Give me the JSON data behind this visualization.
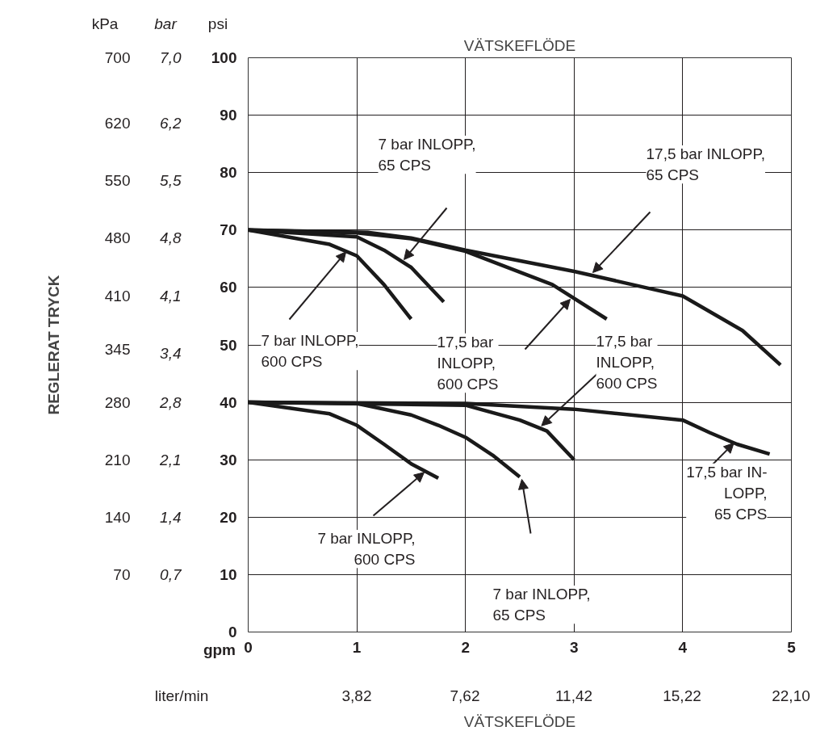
{
  "chart_data": {
    "type": "line",
    "title": "VÄTSKEFLÖDE",
    "y3label": "REGLERAT TRYCK",
    "xlabel": "VÄTSKEFLÖDE",
    "xlim": [
      0,
      5
    ],
    "xticks": [
      0,
      1,
      2,
      3,
      4,
      5
    ],
    "ylim": [
      0,
      100
    ],
    "yticks": [
      0,
      10,
      20,
      30,
      40,
      50,
      60,
      70,
      80,
      90,
      100
    ],
    "y2lim": [
      0,
      7
    ],
    "y2ticks": [
      {
        "value": 0.7,
        "label": "0,7"
      },
      {
        "value": 1.4,
        "label": "1,4"
      },
      {
        "value": 2.1,
        "label": "2,1"
      },
      {
        "value": 2.8,
        "label": "2,8"
      },
      {
        "value": 3.4,
        "label": "3,4"
      },
      {
        "value": 4.1,
        "label": "4,1"
      },
      {
        "value": 4.8,
        "label": "4,8"
      },
      {
        "value": 5.5,
        "label": "5,5"
      },
      {
        "value": 6.2,
        "label": "6,2"
      },
      {
        "value": 7,
        "label": "7,0"
      }
    ],
    "y3lim": [
      0,
      700
    ],
    "y3ticks": [
      70,
      140,
      210,
      280,
      345,
      410,
      480,
      550,
      620,
      700
    ],
    "grid": true,
    "marker": "none",
    "line_style": "solid",
    "series": [
      {
        "color": "#1a1a1a",
        "x": [
          0,
          0.75,
          1,
          1.25,
          1.5
        ],
        "values": [
          70,
          67.5,
          65.5,
          60.5,
          54.5
        ]
      },
      {
        "color": "#1a1a1a",
        "x": [
          0,
          1,
          1.25,
          1.5,
          1.8
        ],
        "values": [
          70,
          68.8,
          66.5,
          63.5,
          57.5
        ]
      },
      {
        "color": "#1a1a1a",
        "x": [
          0,
          1,
          1.5,
          2,
          2.8,
          3.3
        ],
        "values": [
          70,
          69.5,
          68.5,
          66.3,
          60.5,
          54.5
        ]
      },
      {
        "color": "#1a1a1a",
        "x": [
          0,
          1.1,
          1.5,
          2,
          3,
          3.7,
          4,
          4.55,
          4.9
        ],
        "values": [
          70,
          69.6,
          68.6,
          66.5,
          62.8,
          59.8,
          58.5,
          52.5,
          46.5
        ]
      },
      {
        "color": "#1a1a1a",
        "x": [
          0,
          0.75,
          1,
          1.25,
          1.5,
          1.75
        ],
        "values": [
          40,
          38,
          36,
          32.7,
          29.3,
          26.8
        ]
      },
      {
        "color": "#1a1a1a",
        "x": [
          0,
          1,
          1.5,
          1.75,
          2,
          2.25,
          2.5
        ],
        "values": [
          40,
          39.8,
          37.8,
          36,
          33.9,
          30.8,
          27
        ]
      },
      {
        "color": "#1a1a1a",
        "x": [
          0,
          2,
          2.5,
          2.75,
          3
        ],
        "values": [
          40,
          39.5,
          36.9,
          35,
          30
        ]
      },
      {
        "color": "#1a1a1a",
        "x": [
          0,
          2,
          3,
          4,
          4.25,
          4.5,
          4.8
        ],
        "values": [
          40,
          39.8,
          38.8,
          36.9,
          34.7,
          32.7,
          31
        ]
      }
    ],
    "annotations": [
      "kPa",
      "bar",
      "psi",
      "gpm",
      "liter/min",
      "3,82",
      "7,62",
      "11,42",
      "15,22",
      "22,10",
      "7 bar INLOPP,\n65 CPS",
      "17,5 bar INLOPP,\n65 CPS",
      {
        "text": "7 bar INLOPP,\n600 CPS",
        "x": 0.9,
        "y": 66.2
      },
      "17,5 bar\nINLOPP,\n600 CPS",
      {
        "text": "17,5 bar\nINLOPP,\n600 CPS",
        "x": 2.7,
        "y": 35.9
      },
      {
        "text": "17,5 bar IN-\nLOPP,\n65 CPS",
        "x": 4.47,
        "y": 32.9
      },
      {
        "text": "7 bar INLOPP,\n600 CPS",
        "x": 1.62,
        "y": 27.8
      },
      "7 bar INLOPP,\n65 CPS"
    ]
  }
}
